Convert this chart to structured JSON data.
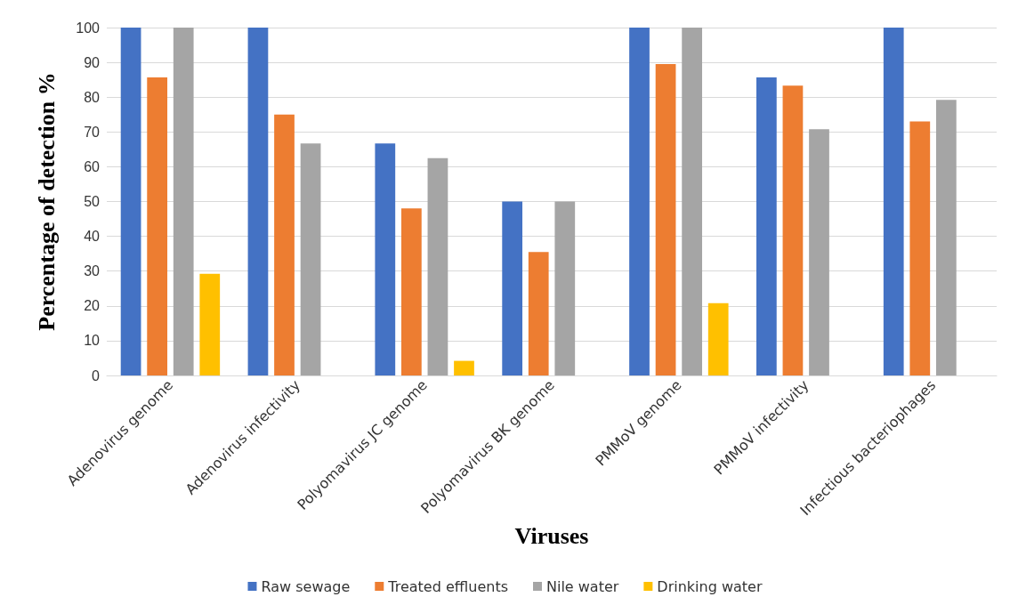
{
  "chart_data": {
    "type": "bar",
    "xlabel": "Viruses",
    "ylabel": "Percentage of detection %",
    "categories": [
      "Adenovirus genome",
      "Adenovirus infectivity",
      "Polyomavirus JC genome",
      "Polyomavirus BK genome",
      "PMMoV genome",
      "PMMoV infectivity",
      "Infectious bacteriophages"
    ],
    "series": [
      {
        "name": "Raw sewage",
        "color": "#4472c4",
        "values": [
          100,
          100,
          66.7,
          50,
          100,
          85.7,
          100
        ]
      },
      {
        "name": "Treated effluents",
        "color": "#ed7d31",
        "values": [
          85.7,
          75,
          48,
          35.5,
          89.5,
          83.3,
          73
        ]
      },
      {
        "name": "Nile water",
        "color": "#a5a5a5",
        "values": [
          100,
          66.7,
          62.5,
          50,
          100,
          70.8,
          79.2
        ]
      },
      {
        "name": "Drinking water",
        "color": "#ffc000",
        "values": [
          29.2,
          0,
          4.2,
          0,
          20.8,
          0,
          0
        ]
      }
    ],
    "ylim": [
      0,
      100
    ],
    "yticks": [
      0,
      10,
      20,
      30,
      40,
      50,
      60,
      70,
      80,
      90,
      100
    ],
    "grid": "y",
    "legend": "bottom"
  }
}
